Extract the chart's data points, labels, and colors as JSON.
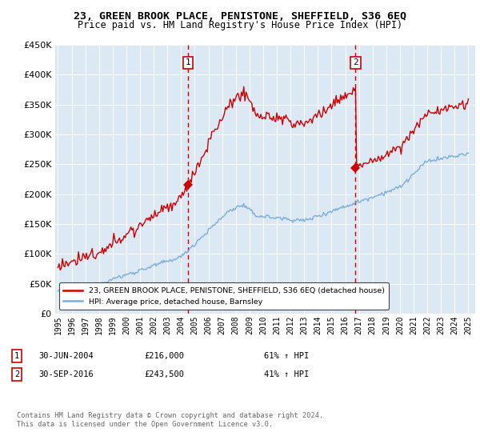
{
  "title": "23, GREEN BROOK PLACE, PENISTONE, SHEFFIELD, S36 6EQ",
  "subtitle": "Price paid vs. HM Land Registry's House Price Index (HPI)",
  "background_color": "#dce9f5",
  "fig_bg_color": "#ffffff",
  "legend_label_red": "23, GREEN BROOK PLACE, PENISTONE, SHEFFIELD, S36 6EQ (detached house)",
  "legend_label_blue": "HPI: Average price, detached house, Barnsley",
  "footer": "Contains HM Land Registry data © Crown copyright and database right 2024.\nThis data is licensed under the Open Government Licence v3.0.",
  "transaction1_label": "1",
  "transaction1_date": "30-JUN-2004",
  "transaction1_price": "£216,000",
  "transaction1_hpi": "61% ↑ HPI",
  "transaction2_label": "2",
  "transaction2_date": "30-SEP-2016",
  "transaction2_price": "£243,500",
  "transaction2_hpi": "41% ↑ HPI",
  "red_color": "#cc0000",
  "blue_color": "#7aadda",
  "marker1_x": 2004.5,
  "marker1_y": 216000,
  "marker2_x": 2016.75,
  "marker2_y": 243500,
  "ylim": [
    0,
    450000
  ],
  "xlim": [
    1994.8,
    2025.5
  ],
  "yticks": [
    0,
    50000,
    100000,
    150000,
    200000,
    250000,
    300000,
    350000,
    400000,
    450000
  ],
  "xticks": [
    1995,
    1996,
    1997,
    1998,
    1999,
    2000,
    2001,
    2002,
    2003,
    2004,
    2005,
    2006,
    2007,
    2008,
    2009,
    2010,
    2011,
    2012,
    2013,
    2014,
    2015,
    2016,
    2017,
    2018,
    2019,
    2020,
    2021,
    2022,
    2023,
    2024,
    2025
  ]
}
